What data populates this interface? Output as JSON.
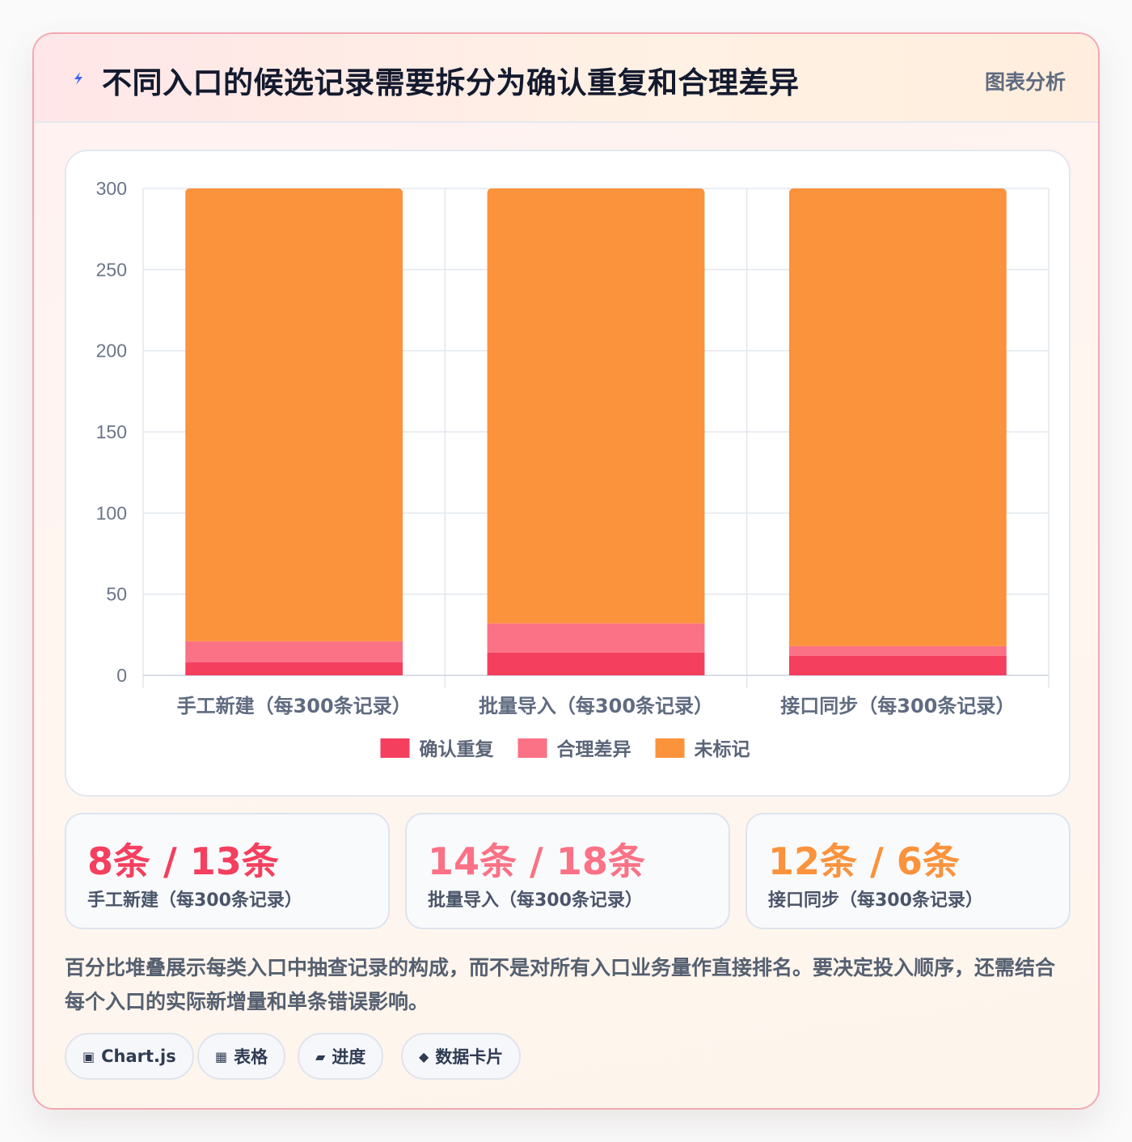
{
  "header": {
    "title": "不同入口的候选记录需要拆分为确认重复和合理差异",
    "tag": "图表分析"
  },
  "chart_data": {
    "type": "bar",
    "stacked": true,
    "categories": [
      "手工新建（每300条记录）",
      "批量导入（每300条记录）",
      "接口同步（每300条记录）"
    ],
    "series": [
      {
        "name": "确认重复",
        "color": "#f43f5e",
        "values": [
          8,
          14,
          12
        ]
      },
      {
        "name": "合理差异",
        "color": "#fb7185",
        "values": [
          13,
          18,
          6
        ]
      },
      {
        "name": "未标记",
        "color": "#fb923c",
        "values": [
          279,
          268,
          282
        ]
      }
    ],
    "ylim": [
      0,
      300
    ],
    "yticks": [
      "0",
      "50",
      "100",
      "150",
      "200",
      "250",
      "300"
    ],
    "grid": true,
    "legend": "bottom"
  },
  "stats": [
    {
      "value": "8条 / 13条",
      "label": "手工新建（每300条记录）",
      "color": "#f43f5e"
    },
    {
      "value": "14条 / 18条",
      "label": "批量导入（每300条记录）",
      "color": "#fb7185"
    },
    {
      "value": "12条 / 6条",
      "label": "接口同步（每300条记录）",
      "color": "#fb923c"
    }
  ],
  "description": "百分比堆叠展示每类入口中抽查记录的构成，而不是对所有入口业务量作直接排名。要决定投入顺序，还需结合每个入口的实际新增量和单条错误影响。",
  "chips": [
    {
      "icon": "▣",
      "label": "Chart.js"
    },
    {
      "icon": "▦",
      "label": "表格"
    },
    {
      "icon": "▰",
      "label": "进度"
    },
    {
      "icon": "◆",
      "label": "数据卡片"
    }
  ],
  "colors": {
    "accent": "#f43f5e",
    "border": "#f3a8b2"
  }
}
